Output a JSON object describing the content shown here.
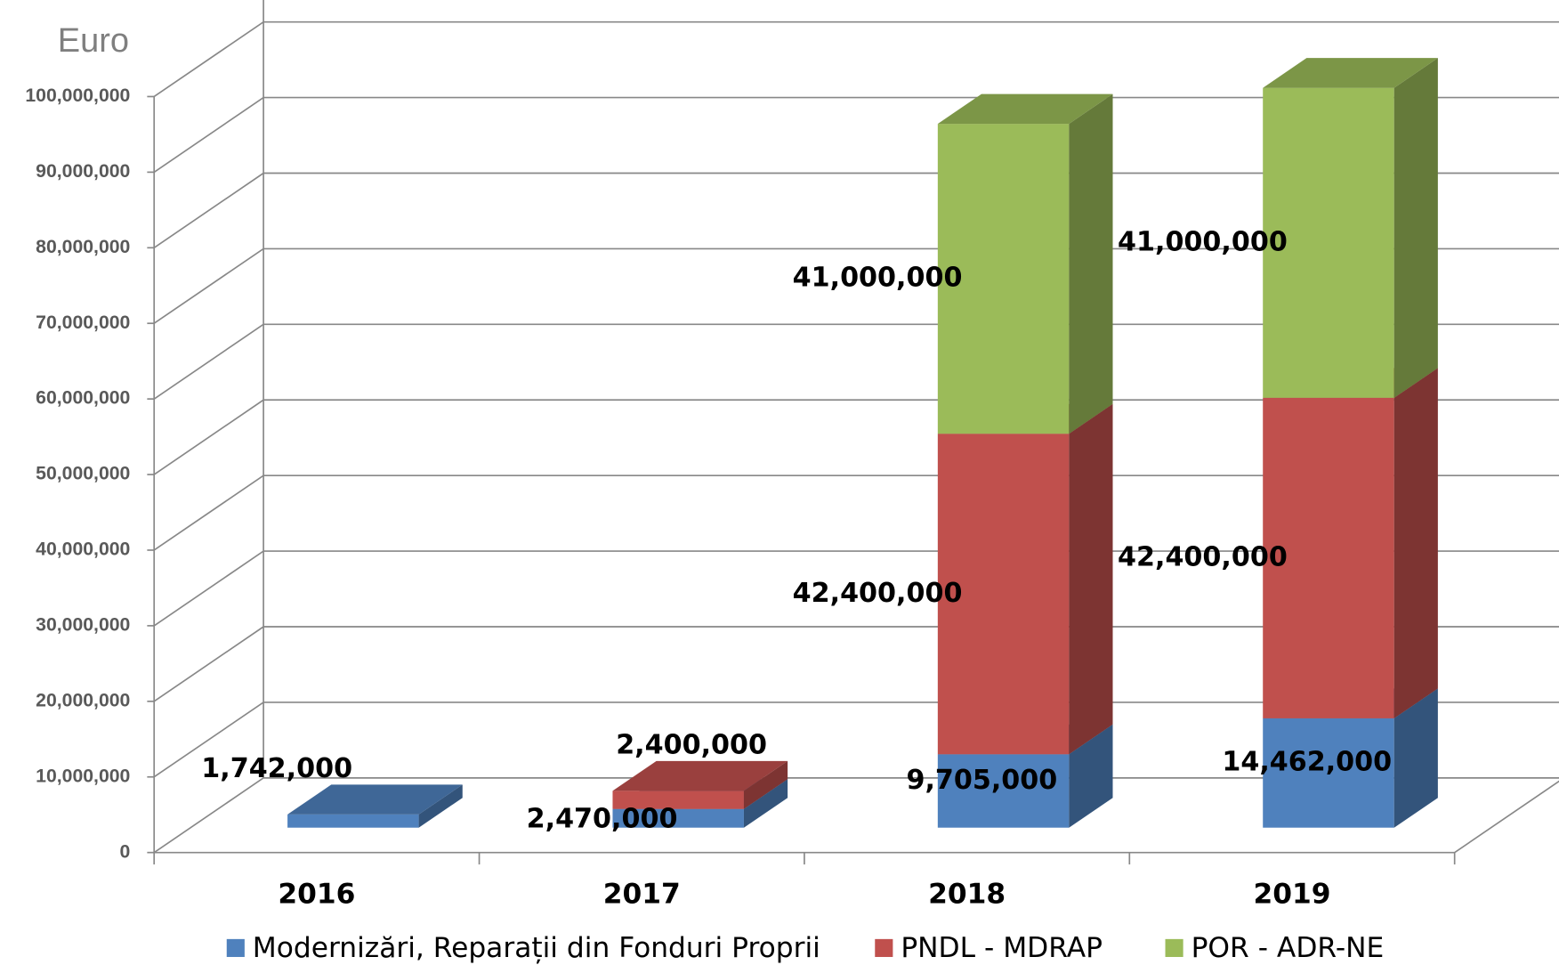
{
  "chart_data": {
    "type": "bar3d_stacked",
    "ylabel": "Euro",
    "categories": [
      "2016",
      "2017",
      "2018",
      "2019"
    ],
    "series": [
      {
        "name": "Modernizări, Reparații din Fonduri Proprii",
        "color": "#4f81bd",
        "values": [
          1742000,
          2470000,
          9705000,
          14462000
        ],
        "value_labels": [
          "1,742,000",
          "2,470,000",
          "9,705,000",
          "14,462,000"
        ]
      },
      {
        "name": "PNDL - MDRAP",
        "color": "#c0504d",
        "values": [
          null,
          2400000,
          42400000,
          42400000
        ],
        "value_labels": [
          null,
          "2,400,000",
          "42,400,000",
          "42,400,000"
        ]
      },
      {
        "name": "POR - ADR-NE",
        "color": "#9bbb59",
        "values": [
          null,
          null,
          41000000,
          41000000
        ],
        "value_labels": [
          null,
          null,
          "41,000,000",
          "41,000,000"
        ]
      }
    ],
    "ylim": [
      0,
      100000000
    ],
    "yticks": [
      0,
      {
        "value": 10000000,
        "label": "10,000,000"
      },
      {
        "value": 20000000,
        "label": "20,000,000"
      },
      {
        "value": 30000000,
        "label": "30,000,000"
      },
      {
        "value": 40000000,
        "label": "40,000,000"
      },
      {
        "value": 50000000,
        "label": "50,000,000"
      },
      {
        "value": 60000000,
        "label": "60,000,000"
      },
      {
        "value": 70000000,
        "label": "70,000,000"
      },
      {
        "value": 80000000,
        "label": "80,000,000"
      },
      {
        "value": 90000000,
        "label": "90,000,000"
      },
      {
        "value": 100000000,
        "label": "100,000,000"
      }
    ],
    "grid": true,
    "legend": "bottom"
  }
}
